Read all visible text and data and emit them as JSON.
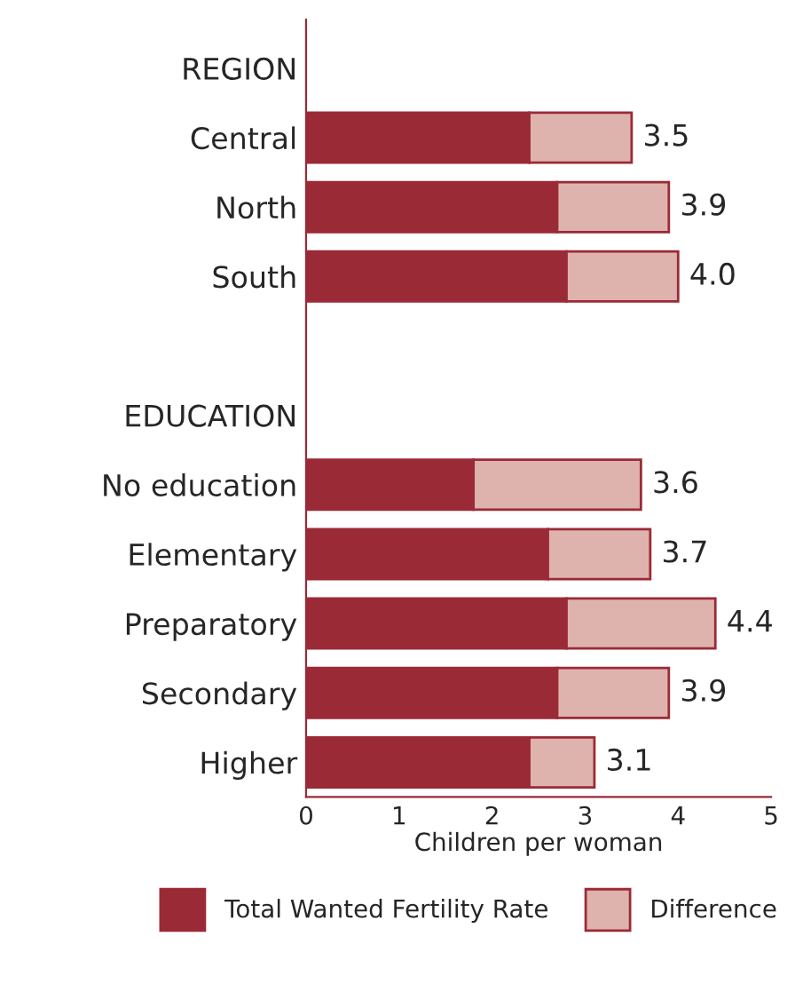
{
  "chart_data": {
    "type": "bar",
    "orientation": "horizontal",
    "stacked": true,
    "xlabel": "Children per woman",
    "categories": [
      "REGION",
      "Central",
      "North",
      "South",
      null,
      "EDUCATION",
      "No education",
      "Elementary",
      "Preparatory",
      "Secondary",
      "Higher"
    ],
    "series": [
      {
        "name": "Total Wanted Fertility Rate",
        "color": "#9b2a37",
        "values": [
          null,
          2.4,
          2.7,
          2.8,
          null,
          null,
          1.8,
          2.6,
          2.8,
          2.7,
          2.4
        ]
      },
      {
        "name": "Difference",
        "color": "#dfb3ad",
        "values": [
          null,
          1.1,
          1.2,
          1.2,
          null,
          null,
          1.8,
          1.1,
          1.6,
          1.2,
          0.7
        ]
      }
    ],
    "totals": [
      null,
      "3.5",
      "3.9",
      "4.0",
      null,
      null,
      "3.6",
      "3.7",
      "4.4",
      "3.9",
      "3.1"
    ],
    "xlim": [
      0,
      5
    ],
    "xticks": [
      0,
      1,
      2,
      3,
      4,
      5
    ],
    "grid": false,
    "legend": "bottom"
  }
}
